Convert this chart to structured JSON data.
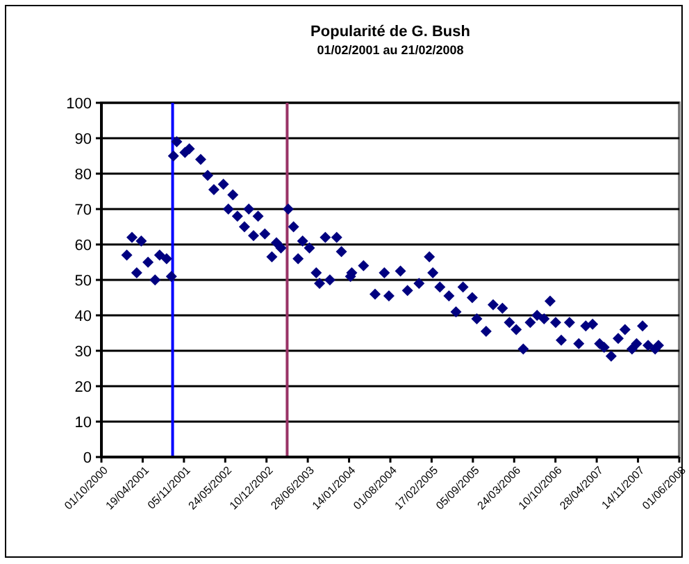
{
  "chart_data": {
    "type": "scatter",
    "title": "Popularité de G. Bush",
    "subtitle": "01/02/2001 au 21/02/2008",
    "marker": "diamond",
    "grid": "y",
    "x": [
      "2001-02-01",
      "2001-02-26",
      "2001-03-21",
      "2001-04-12",
      "2001-05-15",
      "2001-06-18",
      "2001-07-10",
      "2001-08-13",
      "2001-09-05",
      "2001-09-15",
      "2001-10-01",
      "2001-11-10",
      "2001-12-01",
      "2002-01-25",
      "2002-02-28",
      "2002-03-30",
      "2002-05-15",
      "2002-06-08",
      "2002-06-30",
      "2002-07-22",
      "2002-08-25",
      "2002-09-15",
      "2002-10-08",
      "2002-10-30",
      "2002-12-02",
      "2003-01-05",
      "2003-01-27",
      "2003-02-18",
      "2003-03-25",
      "2003-04-20",
      "2003-05-12",
      "2003-06-03",
      "2003-07-06",
      "2003-08-08",
      "2003-08-24",
      "2003-09-21",
      "2003-10-13",
      "2003-11-15",
      "2003-12-08",
      "2004-01-21",
      "2004-01-27",
      "2004-03-24",
      "2004-05-19",
      "2004-07-03",
      "2004-07-25",
      "2004-09-19",
      "2004-10-23",
      "2004-12-18",
      "2005-02-06",
      "2005-02-23",
      "2005-03-29",
      "2005-05-12",
      "2005-06-15",
      "2005-07-19",
      "2005-09-02",
      "2005-09-24",
      "2005-11-08",
      "2005-12-12",
      "2006-01-26",
      "2006-03-01",
      "2006-04-03",
      "2006-05-07",
      "2006-06-10",
      "2006-07-13",
      "2006-08-16",
      "2006-09-14",
      "2006-10-11",
      "2006-11-07",
      "2006-12-17",
      "2007-01-31",
      "2007-03-06",
      "2007-04-08",
      "2007-05-12",
      "2007-06-03",
      "2007-07-07",
      "2007-08-10",
      "2007-09-12",
      "2007-10-16",
      "2007-11-07",
      "2007-12-06",
      "2008-01-02",
      "2008-02-05",
      "2008-02-21"
    ],
    "series": [
      {
        "color": "#000080",
        "values": [
          57,
          62,
          52,
          61,
          55,
          50,
          57,
          56,
          51,
          85,
          89,
          86,
          87,
          84,
          79.5,
          75.5,
          77,
          70,
          74,
          68,
          65,
          70,
          62.5,
          68,
          63,
          56.5,
          60.5,
          59,
          70,
          65,
          56,
          61,
          59,
          52,
          49,
          62,
          50,
          62,
          58,
          51,
          52,
          54,
          46,
          52,
          45.5,
          52.5,
          47,
          49,
          56.5,
          52,
          48,
          45.5,
          41,
          48,
          45,
          39,
          35.5,
          43,
          42,
          38,
          36,
          30.5,
          38,
          40,
          39,
          44,
          38,
          33,
          38,
          32,
          37,
          37.5,
          32,
          31,
          28.5,
          33.5,
          36,
          30.5,
          32,
          37,
          31.5,
          30.5,
          31.5
        ]
      }
    ],
    "xlim": [
      "2000-10-01",
      "2008-06-01"
    ],
    "xticks": [
      {
        "value": "2000-10-01",
        "label": "01/10/2000"
      },
      {
        "value": "2001-04-19",
        "label": "19/04/2001"
      },
      {
        "value": "2001-11-05",
        "label": "05/11/2001"
      },
      {
        "value": "2002-05-24",
        "label": "24/05/2002"
      },
      {
        "value": "2002-12-10",
        "label": "10/12/2002"
      },
      {
        "value": "2003-06-28",
        "label": "28/06/2003"
      },
      {
        "value": "2004-01-14",
        "label": "14/01/2004"
      },
      {
        "value": "2004-08-01",
        "label": "01/08/2004"
      },
      {
        "value": "2005-02-17",
        "label": "17/02/2005"
      },
      {
        "value": "2005-09-05",
        "label": "05/09/2005"
      },
      {
        "value": "2006-03-24",
        "label": "24/03/2006"
      },
      {
        "value": "2006-10-10",
        "label": "10/10/2006"
      },
      {
        "value": "2007-04-28",
        "label": "28/04/2007"
      },
      {
        "value": "2007-11-14",
        "label": "14/11/2007"
      },
      {
        "value": "2008-06-01",
        "label": "01/06/2008"
      }
    ],
    "ylim": [
      0,
      100
    ],
    "yticks": [
      0,
      10,
      20,
      30,
      40,
      50,
      60,
      70,
      80,
      90,
      100
    ],
    "ref_lines": [
      {
        "axis": "x",
        "value": "2001-09-11",
        "color": "#0000ff"
      },
      {
        "axis": "x",
        "value": "2003-03-20",
        "color": "#993366"
      }
    ]
  }
}
